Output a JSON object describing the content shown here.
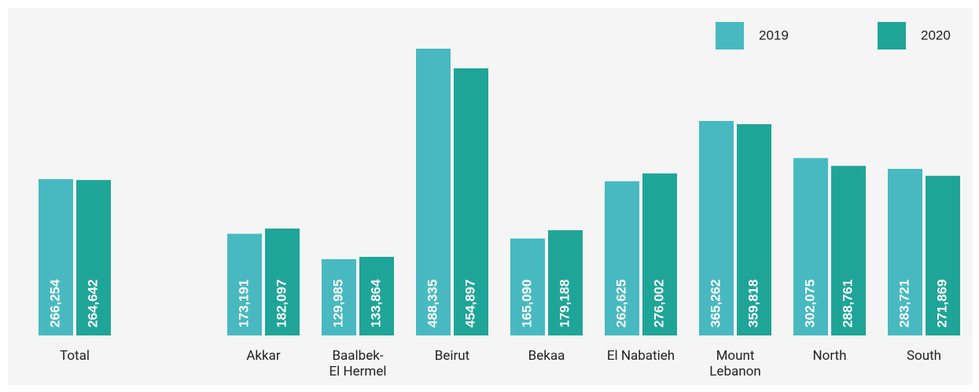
{
  "chart_data": {
    "type": "bar",
    "categories": [
      "Total",
      "Akkar",
      "Baalbek-\nEl Hermel",
      "Beirut",
      "Bekaa",
      "El Nabatieh",
      "Mount\nLebanon",
      "North",
      "South"
    ],
    "series": [
      {
        "name": "2019",
        "color": "#48b9c1",
        "values": [
          266254,
          173191,
          129985,
          488335,
          165090,
          262625,
          365262,
          302075,
          283721
        ],
        "value_labels": [
          "266,254",
          "173,191",
          "129,985",
          "488,335",
          "165,090",
          "262,625",
          "365,262",
          "302,075",
          "283,721"
        ]
      },
      {
        "name": "2020",
        "color": "#1fa598",
        "values": [
          264642,
          182097,
          133864,
          454897,
          179188,
          276002,
          359818,
          288761,
          271869
        ],
        "value_labels": [
          "264,642",
          "182,097",
          "133,864",
          "454,897",
          "179,188",
          "276,002",
          "359,818",
          "288,761",
          "271,869"
        ]
      }
    ],
    "legend": "top-right"
  }
}
